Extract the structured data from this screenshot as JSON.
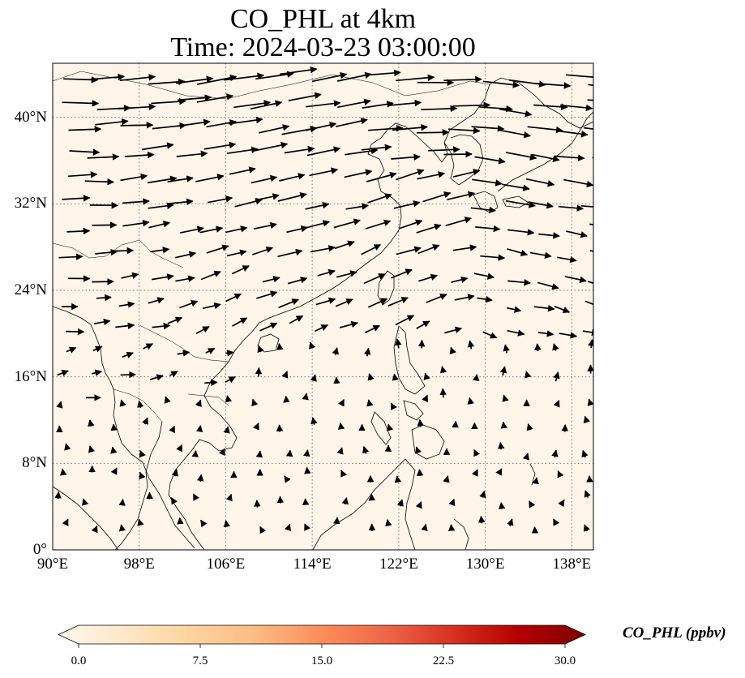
{
  "title": {
    "line1": "CO_PHL at 4km",
    "line2": "Time: 2024-03-23 03:00:00"
  },
  "map": {
    "projection": "PlateCarree",
    "lon_range": [
      90,
      140
    ],
    "lat_range": [
      0,
      45
    ],
    "lat_ticks": [
      {
        "value": 40,
        "label": "40°N"
      },
      {
        "value": 32,
        "label": "32°N"
      },
      {
        "value": 24,
        "label": "24°N"
      },
      {
        "value": 16,
        "label": "16°N"
      },
      {
        "value": 8,
        "label": "8°N"
      },
      {
        "value": 0,
        "label": "0°"
      }
    ],
    "lon_ticks": [
      {
        "value": 90,
        "label": "90°E"
      },
      {
        "value": 98,
        "label": "98°E"
      },
      {
        "value": 106,
        "label": "106°E"
      },
      {
        "value": 114,
        "label": "114°E"
      },
      {
        "value": 122,
        "label": "122°E"
      },
      {
        "value": 130,
        "label": "130°E"
      },
      {
        "value": 138,
        "label": "138°E"
      }
    ],
    "gridlines": "dotted",
    "background_field_color": "#fff5e8",
    "coastline_color": "#000000",
    "vector_color": "#000000"
  },
  "colorbar": {
    "label": "CO_PHL (ppbv)",
    "min": 0.0,
    "max": 30.0,
    "extend": "both",
    "colormap": "OrRd",
    "ticks": [
      "0.0",
      "7.5",
      "15.0",
      "22.5",
      "30.0"
    ],
    "colors": [
      "#fff7ec",
      "#fee8c8",
      "#fdd49e",
      "#fdbb84",
      "#fc8d59",
      "#ef6548",
      "#d7301f",
      "#b30000",
      "#7f0000"
    ]
  }
}
